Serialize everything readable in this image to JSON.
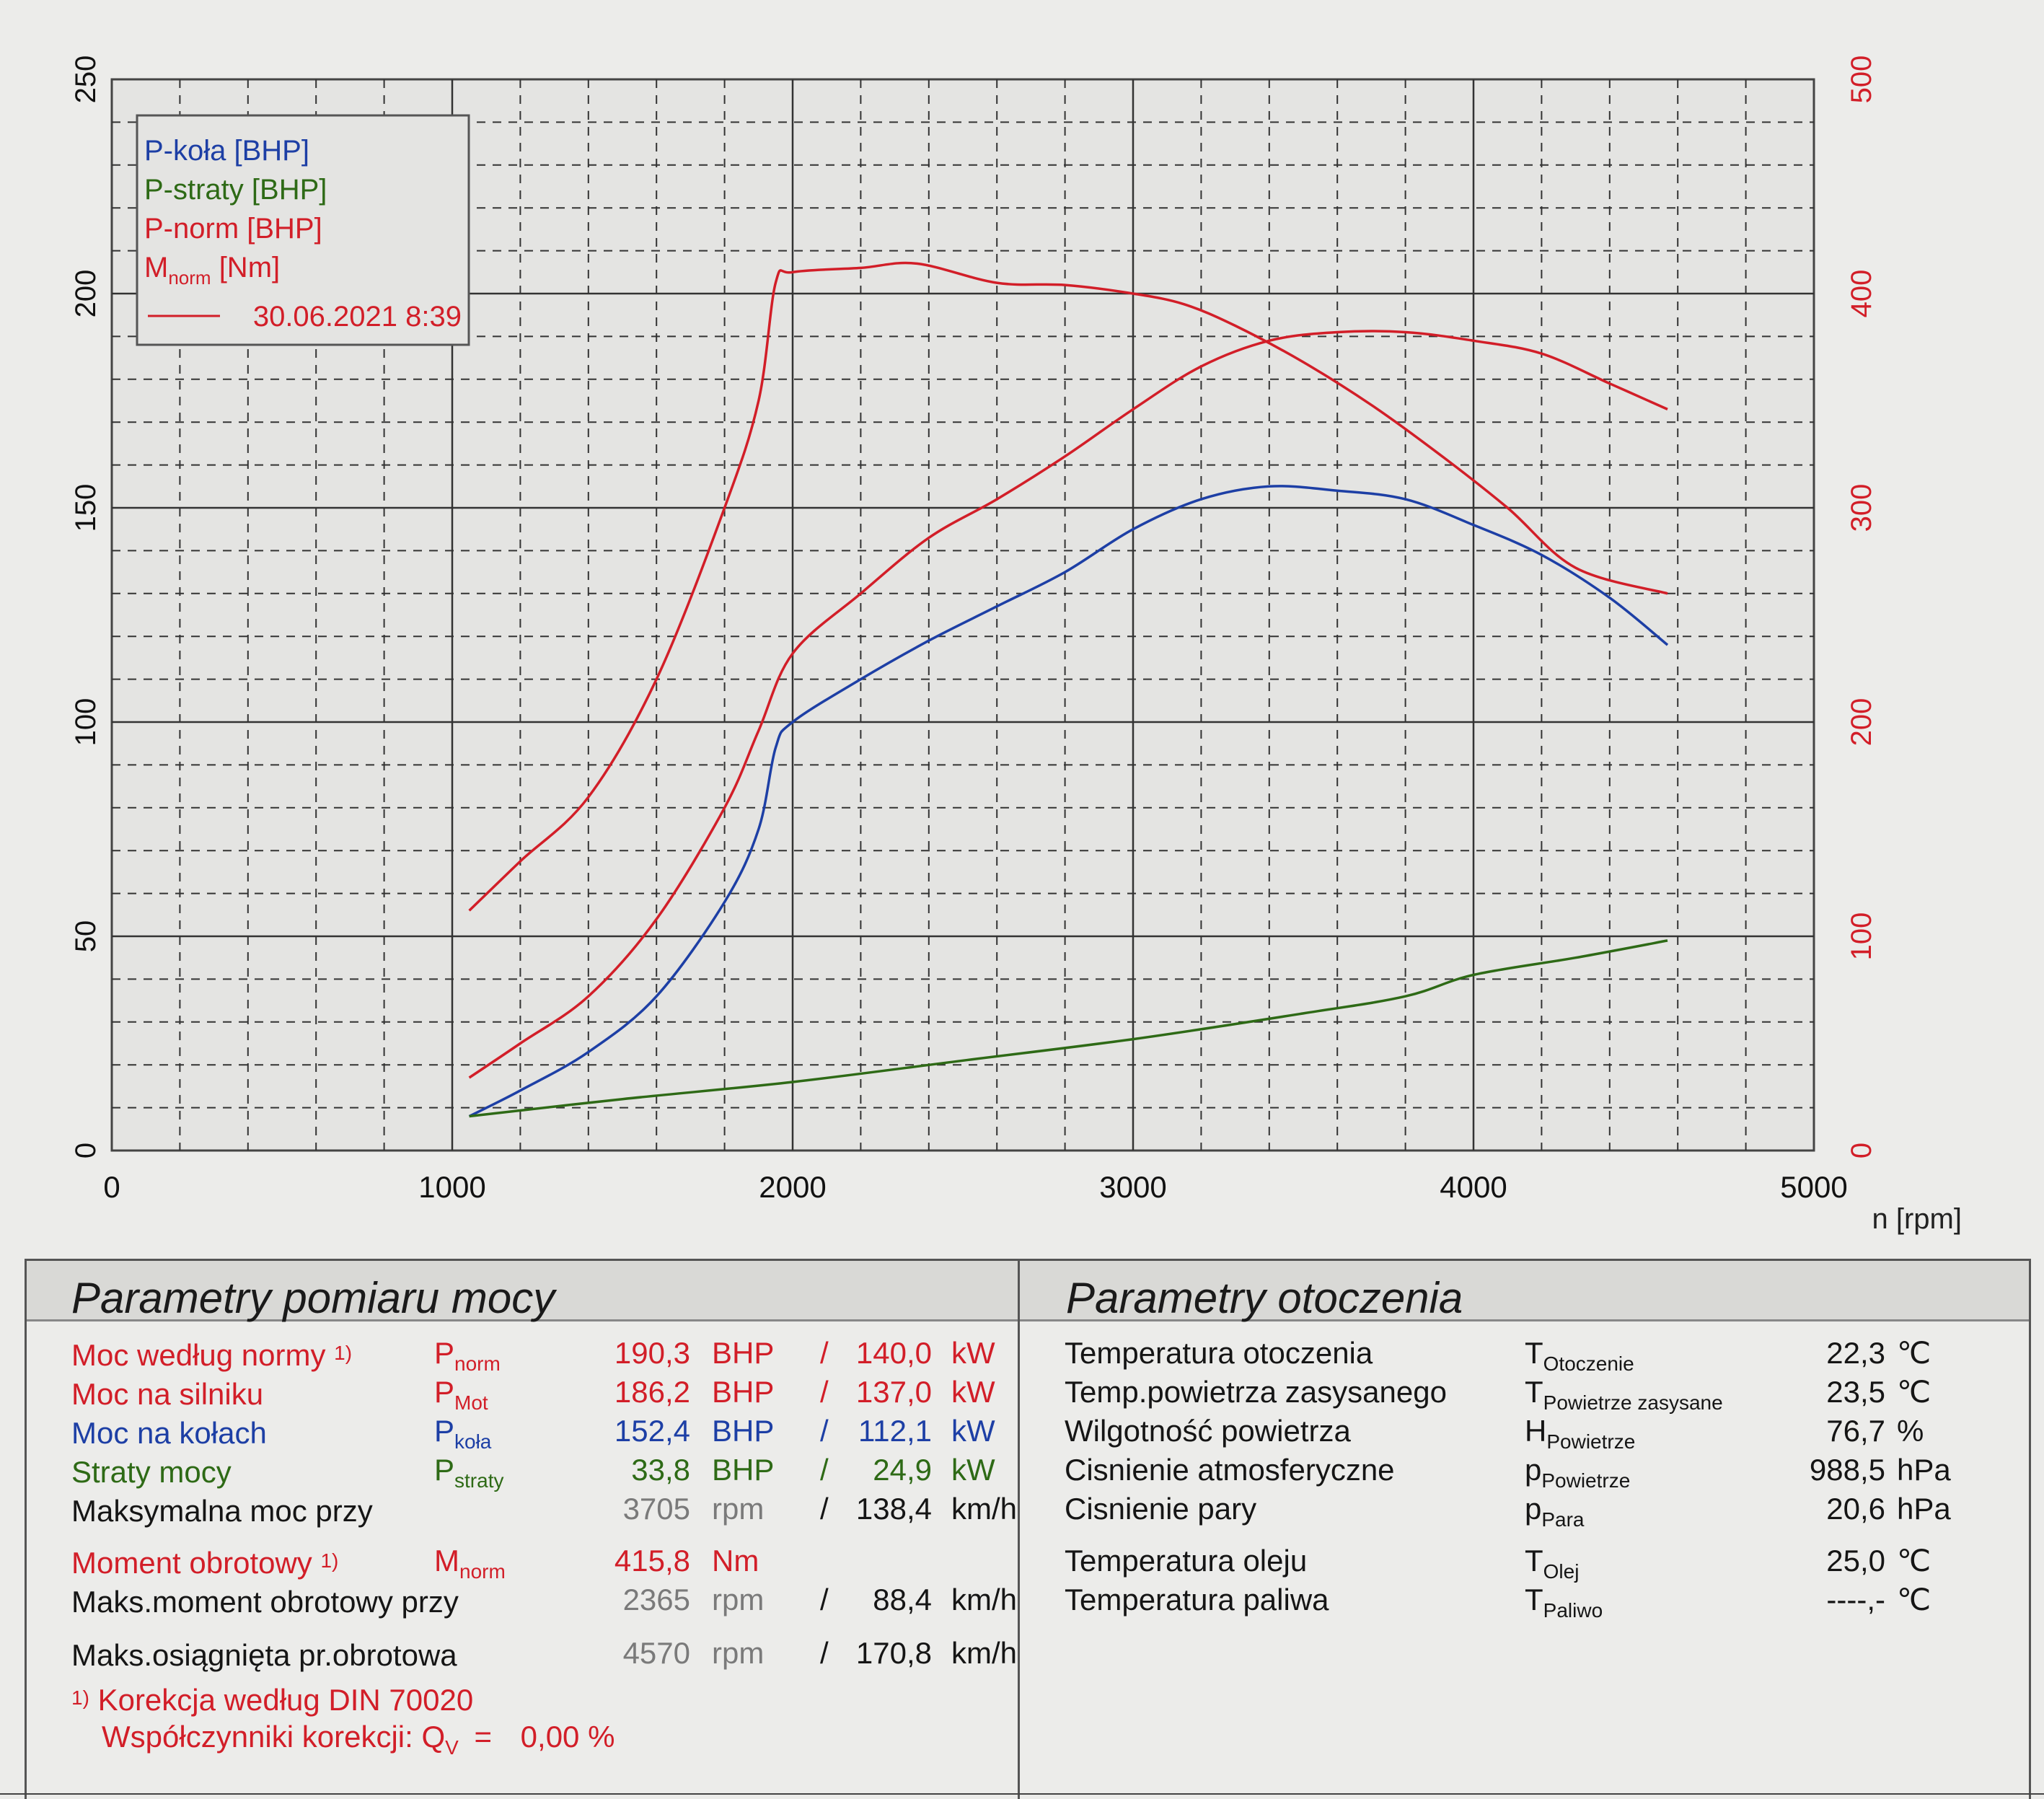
{
  "chart_data": {
    "type": "line",
    "title": "",
    "xlabel": "n [rpm]",
    "x_ticks": [
      "0",
      "1000",
      "2000",
      "3000",
      "4000",
      "5000"
    ],
    "xlim": [
      0,
      5000
    ],
    "y_left_ticks": [
      "0",
      "50",
      "100",
      "150",
      "200",
      "250"
    ],
    "ylim_left": [
      0,
      250
    ],
    "y_right_ticks": [
      "0",
      "100",
      "200",
      "300",
      "400",
      "500"
    ],
    "ylim_right": [
      0,
      500
    ],
    "grid": true,
    "legend_position": "top-left",
    "legend": {
      "entries": [
        {
          "label": "P-koła [BHP]",
          "color": "#1d3fa5"
        },
        {
          "label": "P-straty [BHP]",
          "color": "#2e6a16"
        },
        {
          "label": "P-norm [BHP]",
          "color": "#d21e28"
        },
        {
          "label_main": "M",
          "label_sub": "norm",
          "label_unit": " [Nm]",
          "color": "#d21e28"
        }
      ],
      "date": "30.06.2021 8:39"
    },
    "series": [
      {
        "name": "P-koła [BHP]",
        "axis": "left",
        "color": "#1d3fa5",
        "x": [
          1050,
          1200,
          1400,
          1600,
          1800,
          1900,
          1950,
          2000,
          2200,
          2400,
          2600,
          2800,
          3000,
          3200,
          3400,
          3600,
          3800,
          4000,
          4200,
          4400,
          4570
        ],
        "y": [
          8,
          14,
          23,
          36,
          58,
          75,
          94,
          100,
          110,
          119,
          127,
          135,
          145,
          152,
          155,
          154,
          152,
          146,
          139,
          129,
          118
        ]
      },
      {
        "name": "P-straty [BHP]",
        "axis": "left",
        "color": "#2e6a16",
        "x": [
          1050,
          1500,
          2000,
          2500,
          3000,
          3500,
          3800,
          4000,
          4300,
          4570
        ],
        "y": [
          8,
          12,
          16,
          21,
          26,
          32,
          36,
          41,
          45,
          49
        ]
      },
      {
        "name": "P-norm [BHP]",
        "axis": "left",
        "color": "#d21e28",
        "x": [
          1050,
          1200,
          1400,
          1600,
          1800,
          1900,
          2000,
          2200,
          2400,
          2600,
          2800,
          3000,
          3200,
          3400,
          3600,
          3800,
          4000,
          4200,
          4400,
          4570
        ],
        "y": [
          17,
          25,
          36,
          54,
          80,
          98,
          116,
          130,
          143,
          152,
          162,
          173,
          183,
          189,
          191,
          191,
          189,
          186,
          179,
          173
        ]
      },
      {
        "name": "M norm [Nm]",
        "axis": "right",
        "color": "#d21e28",
        "x": [
          1050,
          1200,
          1400,
          1600,
          1800,
          1900,
          1950,
          2000,
          2200,
          2365,
          2600,
          2800,
          3000,
          3150,
          3300,
          3500,
          3700,
          3900,
          4100,
          4300,
          4570
        ],
        "y": [
          112,
          135,
          165,
          220,
          300,
          350,
          405,
          410,
          412,
          414,
          405,
          404,
          400,
          395,
          385,
          368,
          348,
          325,
          300,
          272,
          260
        ]
      }
    ]
  },
  "left_panel": {
    "title": "Parametry pomiaru mocy",
    "rows": [
      {
        "label": "Moc według normy",
        "marker": "1)",
        "sym": "P",
        "sym_sub": "norm",
        "val1": "190,3",
        "unit1": "BHP",
        "sep": "/",
        "val2": "140,0",
        "unit2": "kW",
        "color": "red"
      },
      {
        "label": "Moc na silniku",
        "marker": "",
        "sym": "P",
        "sym_sub": "Mot",
        "val1": "186,2",
        "unit1": "BHP",
        "sep": "/",
        "val2": "137,0",
        "unit2": "kW",
        "color": "red"
      },
      {
        "label": "Moc na kołach",
        "marker": "",
        "sym": "P",
        "sym_sub": "koła",
        "val1": "152,4",
        "unit1": "BHP",
        "sep": "/",
        "val2": "112,1",
        "unit2": "kW",
        "color": "blue"
      },
      {
        "label": "Straty mocy",
        "marker": "",
        "sym": "P",
        "sym_sub": "straty",
        "val1": "33,8",
        "unit1": "BHP",
        "sep": "/",
        "val2": "24,9",
        "unit2": "kW",
        "color": "green"
      },
      {
        "label": "Maksymalna moc przy",
        "marker": "",
        "sym": "",
        "sym_sub": "",
        "val1": "3705",
        "unit1": "rpm",
        "sep": "/",
        "val2": "138,4",
        "unit2": "km/h",
        "color": "black"
      },
      {
        "label": "Moment obrotowy",
        "marker": "1)",
        "sym": "M",
        "sym_sub": "norm",
        "val1": "415,8",
        "unit1": "Nm",
        "sep": "",
        "val2": "",
        "unit2": "",
        "color": "red"
      },
      {
        "label": "Maks.moment obrotowy przy",
        "marker": "",
        "sym": "",
        "sym_sub": "",
        "val1": "2365",
        "unit1": "rpm",
        "sep": "/",
        "val2": "88,4",
        "unit2": "km/h",
        "color": "black"
      },
      {
        "label": "Maks.osiągnięta pr.obrotowa",
        "marker": "",
        "sym": "",
        "sym_sub": "",
        "val1": "4570",
        "unit1": "rpm",
        "sep": "/",
        "val2": "170,8",
        "unit2": "km/h",
        "color": "black"
      }
    ],
    "footnote_marker": "1)",
    "footnote": "Korekcja według DIN 70020",
    "correction_label": "Współczynniki korekcji: Q",
    "correction_sub": "V",
    "correction_eq": "=",
    "correction_value": "0,00 %"
  },
  "right_panel": {
    "title": "Parametry otoczenia",
    "rows": [
      {
        "label": "Temperatura otoczenia",
        "sym": "T",
        "sym_sub": "Otoczenie",
        "value": "22,3",
        "unit": "℃"
      },
      {
        "label": "Temp.powietrza zasysanego",
        "sym": "T",
        "sym_sub": "Powietrze zasysane",
        "value": "23,5",
        "unit": "℃"
      },
      {
        "label": "Wilgotność powietrza",
        "sym": "H",
        "sym_sub": "Powietrze",
        "value": "76,7",
        "unit": "%"
      },
      {
        "label": "Cisnienie atmosferyczne",
        "sym": "p",
        "sym_sub": "Powietrze",
        "value": "988,5",
        "unit": "hPa"
      },
      {
        "label": "Cisnienie pary",
        "sym": "p",
        "sym_sub": "Para",
        "value": "20,6",
        "unit": "hPa"
      },
      {
        "label": "Temperatura oleju",
        "sym": "T",
        "sym_sub": "Olej",
        "value": "25,0",
        "unit": "℃"
      },
      {
        "label": "Temperatura paliwa",
        "sym": "T",
        "sym_sub": "Paliwo",
        "value": "----,-",
        "unit": "℃"
      }
    ]
  },
  "colors": {
    "red": "#d21e28",
    "blue": "#1d3fa5",
    "green": "#2e6a16",
    "black": "#151515",
    "gray": "#7a7a7a",
    "grid": "#333333"
  }
}
